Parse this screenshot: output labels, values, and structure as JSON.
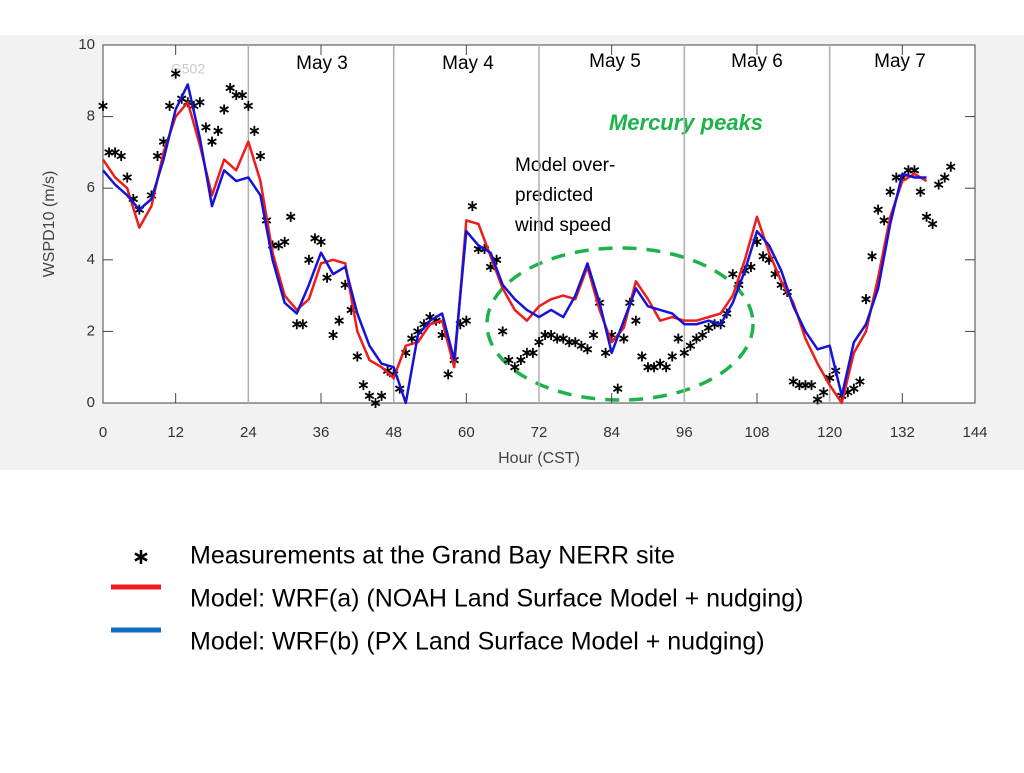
{
  "chart_data": {
    "type": "line",
    "xlabel": "Hour (CST)",
    "ylabel": "WSPD10 (m/s)",
    "station": "G502",
    "day_labels": [
      "May 3",
      "May 4",
      "May 5",
      "May 6",
      "May 7"
    ],
    "annotations": {
      "mercury": "Mercury peaks",
      "over": [
        "Model over-",
        "predicted",
        "wind speed"
      ]
    },
    "xlim": [
      0,
      144
    ],
    "xticks": [
      0,
      12,
      24,
      36,
      48,
      60,
      72,
      84,
      96,
      108,
      120,
      132,
      144
    ],
    "ylim": [
      0,
      10
    ],
    "yticks": [
      0,
      2,
      4,
      6,
      8,
      10
    ],
    "series": [
      {
        "name": "Measurements at the Grand Bay NERR site",
        "color": "#000000",
        "marker": "asterisk",
        "x": [
          0,
          1,
          2,
          3,
          4,
          5,
          6,
          8,
          9,
          10,
          11,
          12,
          13,
          14,
          15,
          16,
          17,
          18,
          19,
          20,
          21,
          22,
          23,
          24,
          25,
          26,
          27,
          28,
          29,
          30,
          31,
          32,
          33,
          34,
          35,
          36,
          37,
          38,
          39,
          40,
          41,
          42,
          43,
          44,
          45,
          46,
          47,
          48,
          49,
          50,
          51,
          52,
          53,
          54,
          55,
          56,
          57,
          58,
          59,
          60,
          61,
          62,
          63,
          64,
          65,
          66,
          67,
          68,
          69,
          70,
          71,
          72,
          73,
          74,
          75,
          76,
          77,
          78,
          79,
          80,
          81,
          82,
          83,
          84,
          85,
          86,
          87,
          88,
          89,
          90,
          91,
          92,
          93,
          94,
          95,
          96,
          97,
          98,
          99,
          100,
          101,
          102,
          103,
          104,
          105,
          106,
          107,
          108,
          109,
          110,
          111,
          112,
          113,
          114,
          115,
          116,
          117,
          118,
          119,
          120,
          121,
          122,
          123,
          124,
          125,
          126,
          127,
          128,
          129,
          130,
          131,
          132,
          133,
          134,
          135,
          136,
          137,
          138,
          139,
          140
        ],
        "values": [
          8.3,
          7.0,
          7.0,
          6.9,
          6.3,
          5.7,
          5.4,
          5.8,
          6.9,
          7.3,
          8.3,
          9.2,
          8.5,
          8.4,
          8.3,
          8.4,
          7.7,
          7.3,
          7.6,
          8.2,
          8.8,
          8.6,
          8.6,
          8.3,
          7.6,
          6.9,
          5.1,
          4.4,
          4.4,
          4.5,
          5.2,
          2.2,
          2.2,
          4.0,
          4.6,
          4.5,
          3.5,
          1.9,
          2.3,
          3.3,
          2.6,
          1.3,
          0.5,
          0.2,
          0.0,
          0.2,
          0.9,
          0.8,
          0.4,
          1.4,
          1.8,
          2.0,
          2.2,
          2.4,
          2.3,
          1.9,
          0.8,
          1.2,
          2.2,
          2.3,
          5.5,
          4.3,
          4.3,
          3.8,
          4.0,
          2.0,
          1.2,
          1.0,
          1.2,
          1.4,
          1.4,
          1.7,
          1.9,
          1.9,
          1.8,
          1.8,
          1.7,
          1.7,
          1.6,
          1.5,
          1.9,
          2.8,
          1.4,
          1.9,
          0.4,
          1.8,
          2.8,
          2.3,
          1.3,
          1.0,
          1.0,
          1.1,
          1.0,
          1.3,
          1.8,
          1.4,
          1.6,
          1.8,
          1.9,
          2.1,
          2.2,
          2.2,
          2.5,
          3.6,
          3.3,
          3.7,
          3.8,
          4.5,
          4.1,
          4.0,
          3.6,
          3.3,
          3.1,
          0.6,
          0.5,
          0.5,
          0.5,
          0.1,
          0.3,
          0.7,
          0.9,
          0.2,
          0.3,
          0.4,
          0.6,
          2.9,
          4.1,
          5.4,
          5.1,
          5.9,
          6.3,
          6.3,
          6.5,
          6.5,
          5.9,
          5.2,
          5.0,
          6.1,
          6.3,
          6.6
        ]
      },
      {
        "name": "Model: WRF(a) (NOAH Land Surface Model + nudging)",
        "color": "#ee1c1c",
        "x": [
          0,
          2,
          4,
          6,
          8,
          10,
          12,
          14,
          16,
          18,
          20,
          22,
          24,
          26,
          28,
          30,
          32,
          34,
          36,
          38,
          40,
          42,
          44,
          46,
          48,
          50,
          52,
          54,
          56,
          58,
          60,
          62,
          64,
          66,
          68,
          70,
          72,
          74,
          76,
          78,
          80,
          82,
          84,
          86,
          88,
          90,
          92,
          94,
          96,
          98,
          100,
          102,
          104,
          106,
          108,
          110,
          112,
          114,
          116,
          118,
          120,
          122,
          124,
          126,
          128,
          130,
          132,
          134,
          136
        ],
        "values": [
          6.8,
          6.3,
          6.0,
          4.9,
          5.5,
          7.0,
          8.0,
          8.4,
          7.2,
          5.8,
          6.8,
          6.5,
          7.3,
          6.2,
          4.2,
          3.0,
          2.6,
          2.9,
          3.9,
          4.0,
          3.9,
          2.0,
          1.2,
          1.0,
          0.7,
          1.6,
          1.7,
          2.2,
          2.3,
          1.0,
          5.1,
          5.0,
          4.1,
          3.2,
          2.6,
          2.3,
          2.7,
          2.9,
          3.0,
          2.9,
          3.8,
          2.6,
          1.7,
          2.1,
          3.4,
          2.9,
          2.3,
          2.4,
          2.3,
          2.3,
          2.4,
          2.5,
          3.0,
          4.0,
          5.2,
          4.2,
          3.4,
          2.8,
          1.8,
          1.1,
          0.5,
          0.0,
          1.4,
          2.0,
          3.5,
          5.2,
          6.2,
          6.4,
          6.2
        ]
      },
      {
        "name": "Model: WRF(b) (PX Land Surface Model + nudging)",
        "color": "#1414d8",
        "x": [
          0,
          2,
          4,
          6,
          8,
          10,
          12,
          14,
          16,
          18,
          20,
          22,
          24,
          26,
          28,
          30,
          32,
          34,
          36,
          38,
          40,
          42,
          44,
          46,
          48,
          50,
          52,
          54,
          56,
          58,
          60,
          62,
          64,
          66,
          68,
          70,
          72,
          74,
          76,
          78,
          80,
          82,
          84,
          86,
          88,
          90,
          92,
          94,
          96,
          98,
          100,
          102,
          104,
          106,
          108,
          110,
          112,
          114,
          116,
          118,
          120,
          122,
          124,
          126,
          128,
          130,
          132,
          134,
          136
        ],
        "values": [
          6.5,
          6.1,
          5.8,
          5.4,
          5.7,
          6.8,
          8.2,
          8.9,
          7.4,
          5.5,
          6.5,
          6.2,
          6.3,
          5.8,
          4.0,
          2.8,
          2.5,
          3.3,
          4.2,
          3.6,
          3.8,
          2.5,
          1.6,
          1.1,
          1.0,
          0.0,
          1.9,
          2.3,
          2.5,
          1.2,
          4.8,
          4.4,
          4.2,
          3.3,
          2.9,
          2.6,
          2.4,
          2.6,
          2.4,
          3.0,
          3.9,
          2.8,
          1.4,
          2.3,
          3.2,
          2.7,
          2.6,
          2.5,
          2.2,
          2.2,
          2.3,
          2.2,
          2.8,
          3.7,
          4.8,
          4.4,
          3.7,
          2.7,
          2.0,
          1.5,
          1.6,
          0.2,
          1.7,
          2.2,
          3.2,
          5.0,
          6.4,
          6.3,
          6.3
        ]
      }
    ]
  }
}
